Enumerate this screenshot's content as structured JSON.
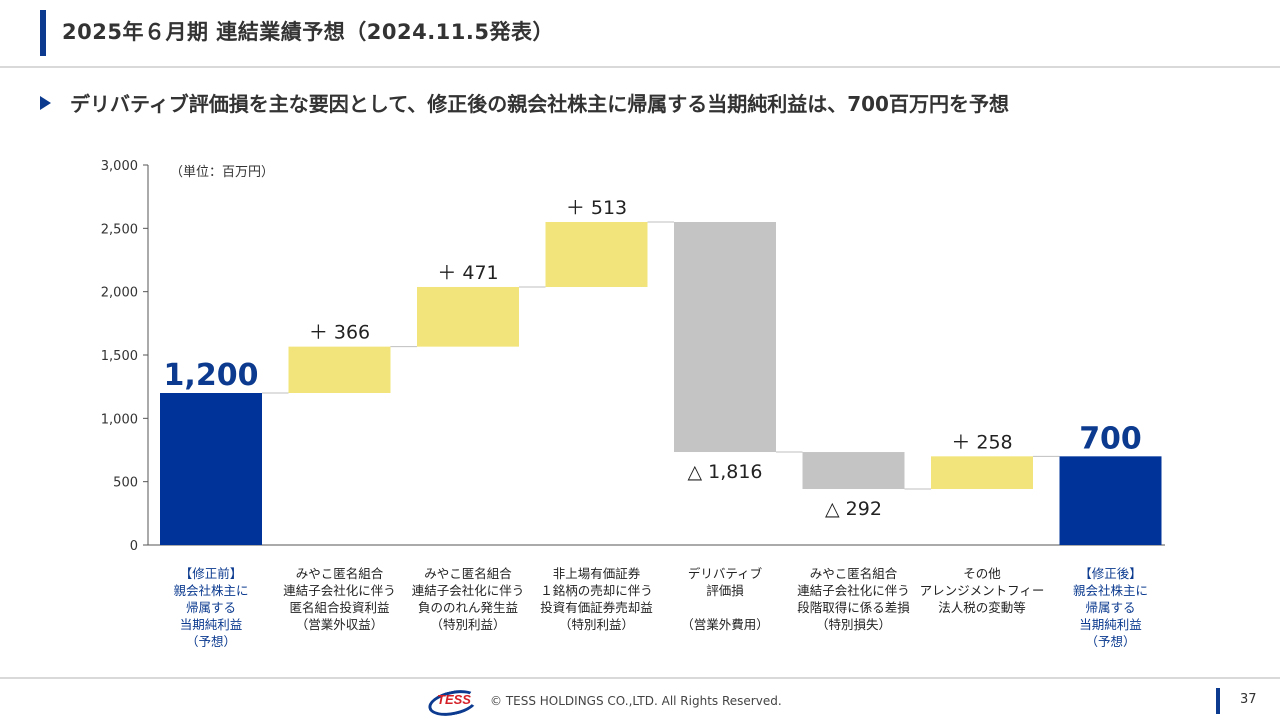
{
  "header": {
    "title": "2025年６月期 連結業績予想（2024.11.5発表）",
    "subtitle": "デリバティブ評価損を主な要因として、修正後の親会社株主に帰属する当期純利益は、700百万円を予想"
  },
  "chart_data": {
    "type": "bar",
    "variant": "waterfall",
    "unit_label": "（単位：百万円）",
    "ylim": [
      0,
      3000
    ],
    "yticks": [
      "0",
      "500",
      "1,000",
      "1,500",
      "2,000",
      "2,500",
      "3,000"
    ],
    "ytick_values": [
      0,
      500,
      1000,
      1500,
      2000,
      2500,
      3000
    ],
    "bars": [
      {
        "kind": "total",
        "start": 0,
        "end": 1200,
        "label": "1,200",
        "label_pos": "above",
        "category": [
          "【修正前】",
          "親会社株主に",
          "帰属する",
          "当期純利益",
          "（予想）"
        ],
        "category_color": "#0b3a8f"
      },
      {
        "kind": "up",
        "start": 1200,
        "end": 1566,
        "label": "＋ 366",
        "label_pos": "above",
        "category": [
          "みやこ匿名組合",
          "連結子会社化に伴う",
          "匿名組合投資利益",
          "（営業外収益）"
        ],
        "category_color": "#222222"
      },
      {
        "kind": "up",
        "start": 1566,
        "end": 2037,
        "label": "＋ 471",
        "label_pos": "above",
        "category": [
          "みやこ匿名組合",
          "連結子会社化に伴う",
          "負ののれん発生益",
          "（特別利益）"
        ],
        "category_color": "#222222"
      },
      {
        "kind": "up",
        "start": 2037,
        "end": 2550,
        "label": "＋ 513",
        "label_pos": "above",
        "category": [
          "非上場有価証券",
          "１銘柄の売却に伴う",
          "投資有価証券売却益",
          "（特別利益）"
        ],
        "category_color": "#222222"
      },
      {
        "kind": "down",
        "start": 2550,
        "end": 734,
        "label": "△ 1,816",
        "label_pos": "below",
        "category": [
          "デリバティブ",
          "評価損",
          "",
          "（営業外費用）"
        ],
        "category_color": "#222222"
      },
      {
        "kind": "down",
        "start": 734,
        "end": 442,
        "label": "△ 292",
        "label_pos": "below",
        "category": [
          "みやこ匿名組合",
          "連結子会社化に伴う",
          "段階取得に係る差損",
          "（特別損失）"
        ],
        "category_color": "#222222"
      },
      {
        "kind": "up",
        "start": 442,
        "end": 700,
        "label": "＋ 258",
        "label_pos": "above",
        "category": [
          "その他",
          "アレンジメントフィー",
          "法人税の変動等"
        ],
        "category_color": "#222222"
      },
      {
        "kind": "total",
        "start": 0,
        "end": 700,
        "label": "700",
        "label_pos": "above",
        "category": [
          "【修正後】",
          "親会社株主に",
          "帰属する",
          "当期純利益",
          "（予想）"
        ],
        "category_color": "#0b3a8f"
      }
    ],
    "colors": {
      "total": "#003399",
      "up": "#f2e47a",
      "down": "#c4c4c4",
      "connector": "#bfbfbf",
      "total_label": "#0b3a8f",
      "axis": "#555555"
    }
  },
  "footer": {
    "logo_text": "TESS",
    "copyright": "© TESS HOLDINGS CO.,LTD. All Rights Reserved.",
    "page_number": "37"
  }
}
